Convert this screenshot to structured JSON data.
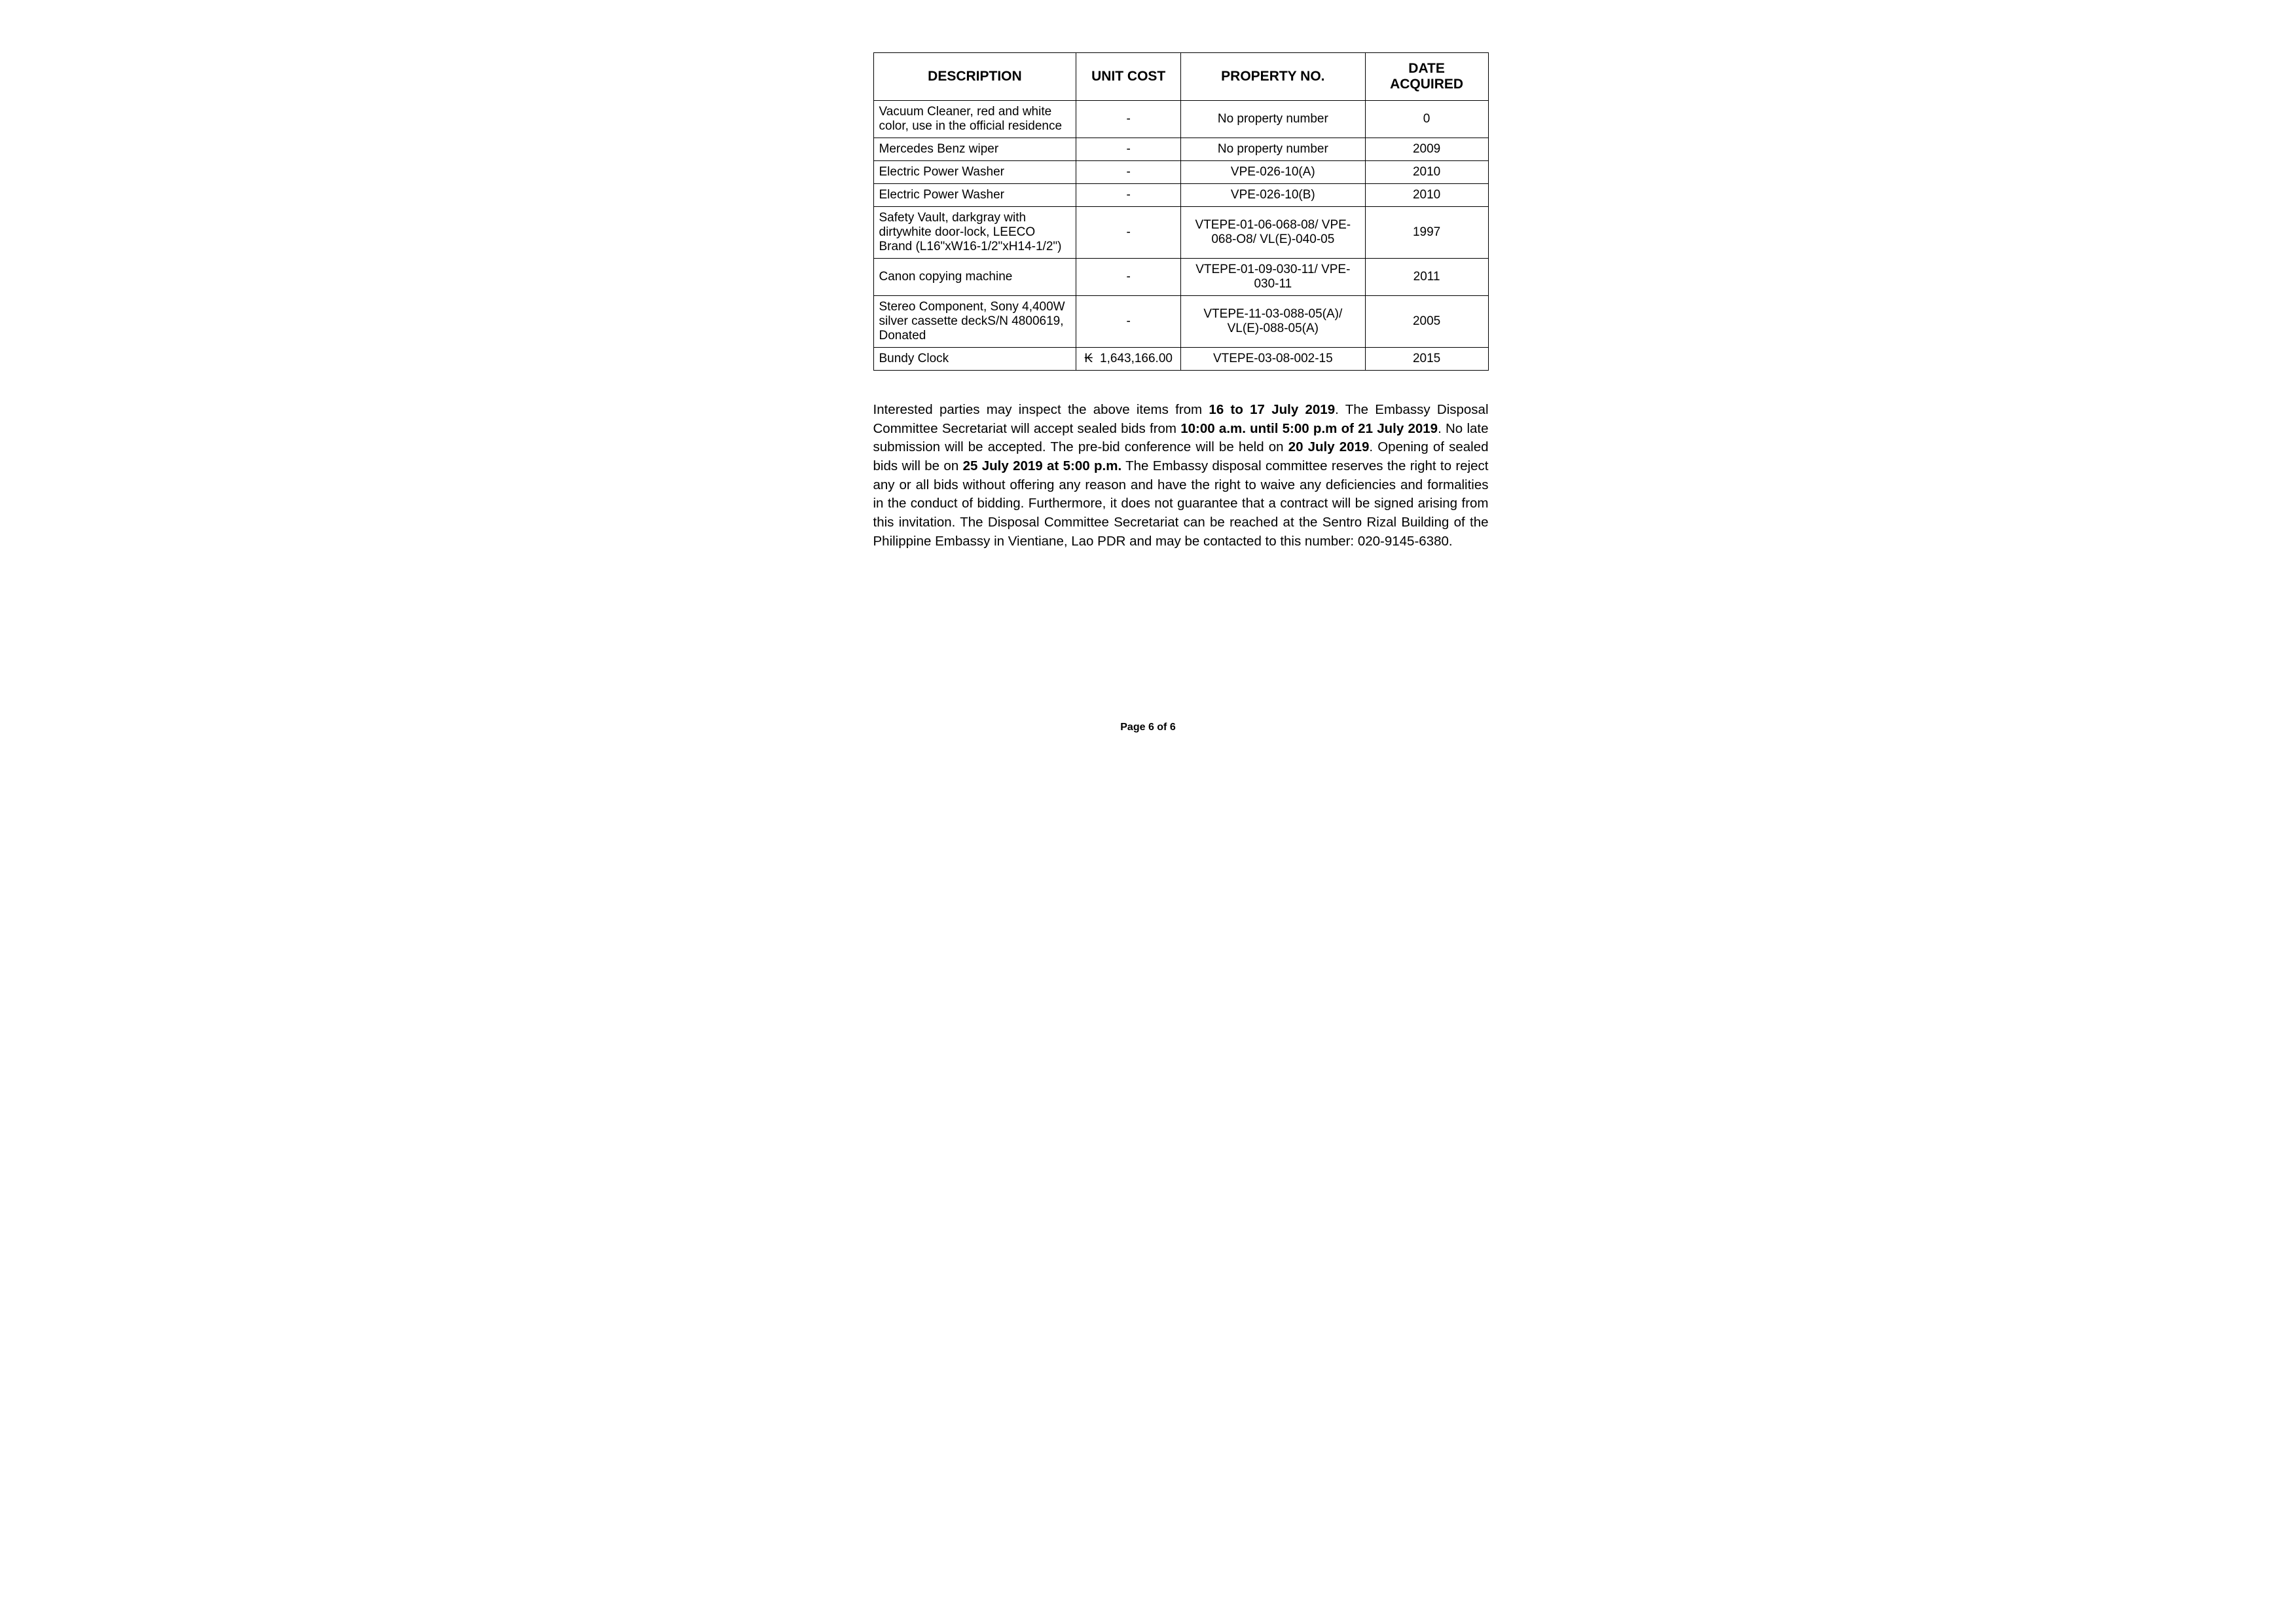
{
  "table": {
    "headers": {
      "description": "DESCRIPTION",
      "unit_cost": "UNIT COST",
      "property_no": "PROPERTY NO.",
      "date_acquired": "DATE ACQUIRED"
    },
    "rows": [
      {
        "description": "Vacuum Cleaner, red and white color, use in the official residence",
        "unit_cost": "-",
        "property_no": "No property number",
        "date_acquired": "0"
      },
      {
        "description": "Mercedes Benz wiper",
        "unit_cost": "-",
        "property_no": "No property number",
        "date_acquired": "2009"
      },
      {
        "description": "Electric Power Washer",
        "unit_cost": "-",
        "property_no": "VPE-026-10(A)",
        "date_acquired": "2010"
      },
      {
        "description": "Electric Power Washer",
        "unit_cost": "-",
        "property_no": "VPE-026-10(B)",
        "date_acquired": "2010"
      },
      {
        "description": "Safety Vault, darkgray with dirtywhite door-lock, LEECO Brand (L16\"xW16-1/2\"xH14-1/2\")",
        "unit_cost": "-",
        "property_no": "VTEPE-01-06-068-08/ VPE-068-O8/ VL(E)-040-05",
        "date_acquired": "1997"
      },
      {
        "description": "Canon copying machine",
        "unit_cost": "-",
        "property_no": "VTEPE-01-09-030-11/ VPE-030-11",
        "date_acquired": "2011"
      },
      {
        "description": "Stereo Component, Sony 4,400W silver cassette deckS/N 4800619, Donated",
        "unit_cost": "-",
        "property_no": "VTEPE-11-03-088-05(A)/ VL(E)-088-05(A)",
        "date_acquired": "2005"
      },
      {
        "description": "Bundy Clock",
        "unit_cost_currency": "₭",
        "unit_cost_value": "1,643,166.00",
        "property_no": "VTEPE-03-08-002-15",
        "date_acquired": "2015"
      }
    ]
  },
  "body": {
    "t1": "Interested parties may inspect the above items from ",
    "b1": "16 to 17 July 2019",
    "t2": ". The Embassy Disposal Committee Secretariat will accept sealed bids from ",
    "b2": "10:00 a.m. until 5:00 p.m of 21 July 2019",
    "t3": ". No late submission will be accepted. The pre-bid conference will be held on ",
    "b3": "20 July 2019",
    "t4": ". Opening of sealed bids will be on ",
    "b4": "25 July 2019 at 5:00 p.m.",
    "t5": " The Embassy disposal committee reserves the right to reject any or all bids without offering any reason and have the right to waive any deficiencies and formalities in the conduct of bidding. Furthermore, it does not guarantee that a contract will be signed arising from this invitation. The Disposal Committee Secretariat can be reached at the Sentro Rizal Building of the Philippine Embassy in Vientiane, Lao PDR and may be contacted to this number: 020-9145-6380."
  },
  "footer": "Page 6 of 6"
}
